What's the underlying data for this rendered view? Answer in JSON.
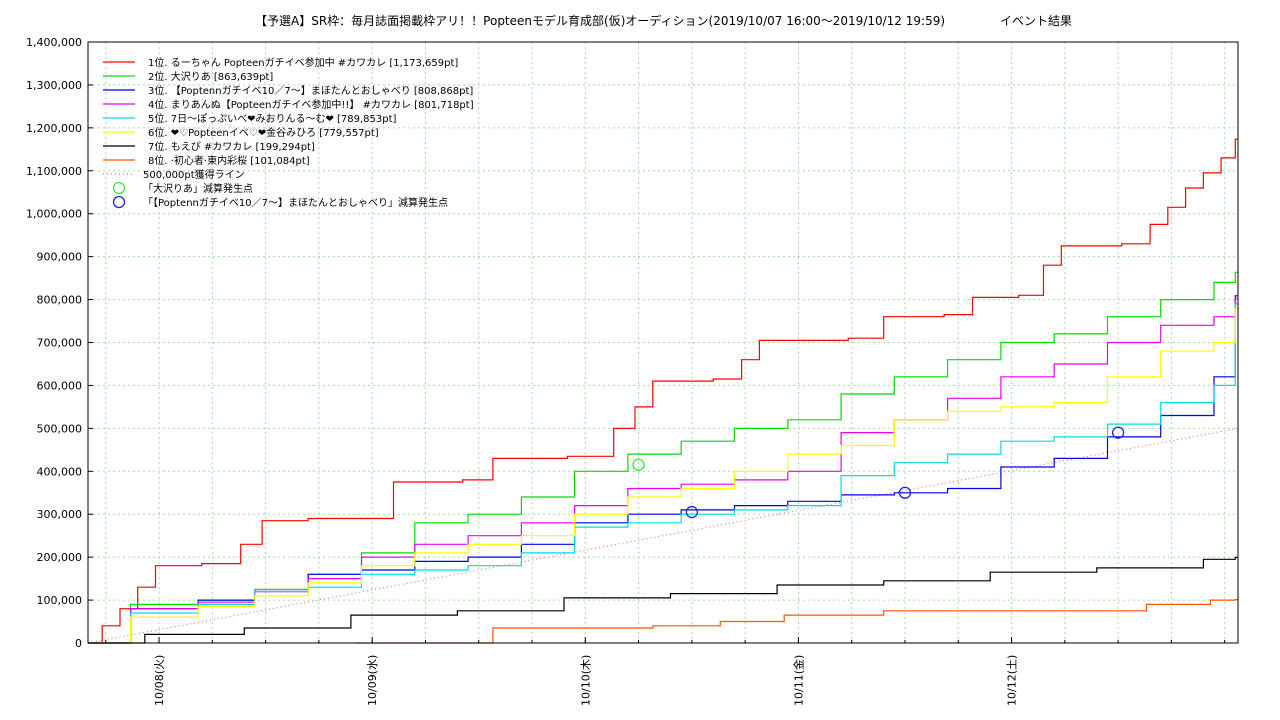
{
  "chart_data": {
    "type": "line",
    "title": "【予選A】SR枠：毎月誌面掲載枠アリ！！Popteenモデル育成部(仮)オーディション(2019/10/07 16:00〜2019/10/12 19:59)",
    "subtitle": "イベント結果",
    "x_range": [
      "2019-10-07 16:00",
      "2019-10-12 19:59"
    ],
    "xtick_labels": [
      "10/08(火)",
      "10/09(水)",
      "10/10(木)",
      "10/11(金)",
      "10/12(土)"
    ],
    "xtick_dates": [
      "2019-10-08",
      "2019-10-09",
      "2019-10-10",
      "2019-10-11",
      "2019-10-12"
    ],
    "ylim": [
      0,
      1400000
    ],
    "yticks": [
      0,
      100000,
      200000,
      300000,
      400000,
      500000,
      600000,
      700000,
      800000,
      900000,
      1000000,
      1100000,
      1200000,
      1300000,
      1400000
    ],
    "ytick_labels": [
      "0",
      "100,000",
      "200,000",
      "300,000",
      "400,000",
      "500,000",
      "600,000",
      "700,000",
      "800,000",
      "900,000",
      "1,000,000",
      "1,100,000",
      "1,200,000",
      "1,300,000",
      "1,400,000"
    ],
    "grid": true,
    "legend_position": "top-left",
    "series": [
      {
        "label": "1位. るーちゃん Popteenガチイベ参加中 #カワカレ [1,173,659pt]",
        "color": "#ff0000",
        "points": [
          [
            "2019-10-07 16:00",
            0
          ],
          [
            "2019-10-07 18:00",
            40000
          ],
          [
            "2019-10-07 20:00",
            80000
          ],
          [
            "2019-10-07 22:00",
            130000
          ],
          [
            "2019-10-08 00:00",
            180000
          ],
          [
            "2019-10-08 06:00",
            185000
          ],
          [
            "2019-10-08 10:00",
            230000
          ],
          [
            "2019-10-08 12:00",
            285000
          ],
          [
            "2019-10-08 18:00",
            290000
          ],
          [
            "2019-10-09 00:00",
            290000
          ],
          [
            "2019-10-09 03:00",
            375000
          ],
          [
            "2019-10-09 12:00",
            380000
          ],
          [
            "2019-10-09 14:00",
            430000
          ],
          [
            "2019-10-10 00:00",
            435000
          ],
          [
            "2019-10-10 04:00",
            500000
          ],
          [
            "2019-10-10 06:00",
            550000
          ],
          [
            "2019-10-10 08:00",
            610000
          ],
          [
            "2019-10-10 16:00",
            615000
          ],
          [
            "2019-10-10 18:00",
            660000
          ],
          [
            "2019-10-10 20:00",
            705000
          ],
          [
            "2019-10-11 08:00",
            710000
          ],
          [
            "2019-10-11 10:00",
            760000
          ],
          [
            "2019-10-11 18:00",
            765000
          ],
          [
            "2019-10-11 20:00",
            805000
          ],
          [
            "2019-10-12 02:00",
            810000
          ],
          [
            "2019-10-12 04:00",
            880000
          ],
          [
            "2019-10-12 06:00",
            925000
          ],
          [
            "2019-10-12 14:00",
            930000
          ],
          [
            "2019-10-12 16:00",
            975000
          ],
          [
            "2019-10-12 18:00",
            1015000
          ],
          [
            "2019-10-12 20:00",
            1060000
          ],
          [
            "2019-10-12 22:00",
            1095000
          ],
          [
            "2019-10-13 00:00",
            1130000
          ],
          [
            "2019-10-13 01:30",
            1173659
          ]
        ]
      },
      {
        "label": "2位. 大沢りあ [863,639pt]",
        "color": "#00dd00",
        "points": [
          [
            "2019-10-07 16:00",
            0
          ],
          [
            "2019-10-07 22:00",
            90000
          ],
          [
            "2019-10-08 06:00",
            100000
          ],
          [
            "2019-10-08 12:00",
            125000
          ],
          [
            "2019-10-08 18:00",
            160000
          ],
          [
            "2019-10-09 00:00",
            210000
          ],
          [
            "2019-10-09 06:00",
            280000
          ],
          [
            "2019-10-09 12:00",
            300000
          ],
          [
            "2019-10-09 18:00",
            340000
          ],
          [
            "2019-10-10 00:00",
            400000
          ],
          [
            "2019-10-10 06:00",
            440000
          ],
          [
            "2019-10-10 12:00",
            470000
          ],
          [
            "2019-10-10 18:00",
            500000
          ],
          [
            "2019-10-11 00:00",
            520000
          ],
          [
            "2019-10-11 06:00",
            580000
          ],
          [
            "2019-10-11 12:00",
            620000
          ],
          [
            "2019-10-11 18:00",
            660000
          ],
          [
            "2019-10-12 00:00",
            700000
          ],
          [
            "2019-10-12 06:00",
            720000
          ],
          [
            "2019-10-12 12:00",
            760000
          ],
          [
            "2019-10-12 18:00",
            800000
          ],
          [
            "2019-10-13 00:00",
            840000
          ],
          [
            "2019-10-13 01:30",
            863639
          ]
        ]
      },
      {
        "label": "3位. 【Poptennガチイベ10／7〜】まほたんとおしゃべり [808,868pt]",
        "color": "#0000ee",
        "points": [
          [
            "2019-10-07 16:00",
            0
          ],
          [
            "2019-10-07 22:00",
            80000
          ],
          [
            "2019-10-08 06:00",
            100000
          ],
          [
            "2019-10-08 12:00",
            120000
          ],
          [
            "2019-10-08 18:00",
            160000
          ],
          [
            "2019-10-09 00:00",
            170000
          ],
          [
            "2019-10-09 06:00",
            190000
          ],
          [
            "2019-10-09 12:00",
            200000
          ],
          [
            "2019-10-09 18:00",
            230000
          ],
          [
            "2019-10-10 00:00",
            280000
          ],
          [
            "2019-10-10 06:00",
            300000
          ],
          [
            "2019-10-10 12:00",
            310000
          ],
          [
            "2019-10-10 18:00",
            320000
          ],
          [
            "2019-10-11 00:00",
            330000
          ],
          [
            "2019-10-11 06:00",
            345000
          ],
          [
            "2019-10-11 12:00",
            350000
          ],
          [
            "2019-10-11 18:00",
            360000
          ],
          [
            "2019-10-12 00:00",
            410000
          ],
          [
            "2019-10-12 06:00",
            430000
          ],
          [
            "2019-10-12 12:00",
            480000
          ],
          [
            "2019-10-12 18:00",
            530000
          ],
          [
            "2019-10-13 00:00",
            620000
          ],
          [
            "2019-10-13 01:30",
            808868
          ]
        ]
      },
      {
        "label": "4位. まりあんぬ【Popteenガチイベ参加中!!】 #カワカレ [801,718pt]",
        "color": "#ee00ee",
        "points": [
          [
            "2019-10-07 16:00",
            0
          ],
          [
            "2019-10-07 22:00",
            80000
          ],
          [
            "2019-10-08 06:00",
            95000
          ],
          [
            "2019-10-08 12:00",
            120000
          ],
          [
            "2019-10-08 18:00",
            150000
          ],
          [
            "2019-10-09 00:00",
            200000
          ],
          [
            "2019-10-09 06:00",
            230000
          ],
          [
            "2019-10-09 12:00",
            250000
          ],
          [
            "2019-10-09 18:00",
            280000
          ],
          [
            "2019-10-10 00:00",
            320000
          ],
          [
            "2019-10-10 06:00",
            360000
          ],
          [
            "2019-10-10 12:00",
            370000
          ],
          [
            "2019-10-10 18:00",
            380000
          ],
          [
            "2019-10-11 00:00",
            400000
          ],
          [
            "2019-10-11 06:00",
            490000
          ],
          [
            "2019-10-11 12:00",
            520000
          ],
          [
            "2019-10-11 18:00",
            570000
          ],
          [
            "2019-10-12 00:00",
            620000
          ],
          [
            "2019-10-12 06:00",
            650000
          ],
          [
            "2019-10-12 12:00",
            700000
          ],
          [
            "2019-10-12 18:00",
            740000
          ],
          [
            "2019-10-13 00:00",
            760000
          ],
          [
            "2019-10-13 01:30",
            801718
          ]
        ]
      },
      {
        "label": "5位. 7日〜ぽっぷいべ❤みおりんる〜む❤ [789,853pt]",
        "color": "#00dddd",
        "points": [
          [
            "2019-10-07 16:00",
            0
          ],
          [
            "2019-10-07 22:00",
            70000
          ],
          [
            "2019-10-08 06:00",
            90000
          ],
          [
            "2019-10-08 12:00",
            120000
          ],
          [
            "2019-10-08 18:00",
            130000
          ],
          [
            "2019-10-09 00:00",
            160000
          ],
          [
            "2019-10-09 06:00",
            170000
          ],
          [
            "2019-10-09 12:00",
            180000
          ],
          [
            "2019-10-09 18:00",
            210000
          ],
          [
            "2019-10-10 00:00",
            270000
          ],
          [
            "2019-10-10 06:00",
            280000
          ],
          [
            "2019-10-10 12:00",
            300000
          ],
          [
            "2019-10-10 18:00",
            310000
          ],
          [
            "2019-10-11 00:00",
            320000
          ],
          [
            "2019-10-11 06:00",
            390000
          ],
          [
            "2019-10-11 12:00",
            420000
          ],
          [
            "2019-10-11 18:00",
            440000
          ],
          [
            "2019-10-12 00:00",
            470000
          ],
          [
            "2019-10-12 06:00",
            480000
          ],
          [
            "2019-10-12 12:00",
            510000
          ],
          [
            "2019-10-12 18:00",
            560000
          ],
          [
            "2019-10-13 00:00",
            600000
          ],
          [
            "2019-10-13 01:30",
            789853
          ]
        ]
      },
      {
        "label": "6位. ❤♡Popteenイベ♡❤金谷みひろ [779,557pt]",
        "color": "#ffff00",
        "points": [
          [
            "2019-10-07 16:00",
            0
          ],
          [
            "2019-10-07 22:00",
            60000
          ],
          [
            "2019-10-08 06:00",
            85000
          ],
          [
            "2019-10-08 12:00",
            110000
          ],
          [
            "2019-10-08 18:00",
            140000
          ],
          [
            "2019-10-09 00:00",
            180000
          ],
          [
            "2019-10-09 06:00",
            210000
          ],
          [
            "2019-10-09 12:00",
            230000
          ],
          [
            "2019-10-09 18:00",
            250000
          ],
          [
            "2019-10-10 00:00",
            300000
          ],
          [
            "2019-10-10 06:00",
            340000
          ],
          [
            "2019-10-10 12:00",
            360000
          ],
          [
            "2019-10-10 18:00",
            400000
          ],
          [
            "2019-10-11 00:00",
            440000
          ],
          [
            "2019-10-11 06:00",
            460000
          ],
          [
            "2019-10-11 12:00",
            520000
          ],
          [
            "2019-10-11 18:00",
            540000
          ],
          [
            "2019-10-12 00:00",
            550000
          ],
          [
            "2019-10-12 06:00",
            560000
          ],
          [
            "2019-10-12 12:00",
            620000
          ],
          [
            "2019-10-12 18:00",
            680000
          ],
          [
            "2019-10-13 00:00",
            700000
          ],
          [
            "2019-10-13 01:30",
            779557
          ]
        ]
      },
      {
        "label": "7位. もえぴ #カワカレ [199,294pt]",
        "color": "#000000",
        "points": [
          [
            "2019-10-07 16:00",
            0
          ],
          [
            "2019-10-08 00:00",
            20000
          ],
          [
            "2019-10-08 12:00",
            35000
          ],
          [
            "2019-10-09 00:00",
            65000
          ],
          [
            "2019-10-09 12:00",
            75000
          ],
          [
            "2019-10-10 00:00",
            105000
          ],
          [
            "2019-10-10 12:00",
            115000
          ],
          [
            "2019-10-11 00:00",
            135000
          ],
          [
            "2019-10-11 12:00",
            145000
          ],
          [
            "2019-10-12 00:00",
            165000
          ],
          [
            "2019-10-12 12:00",
            175000
          ],
          [
            "2019-10-13 00:00",
            195000
          ],
          [
            "2019-10-13 01:30",
            199294
          ]
        ]
      },
      {
        "label": "8位. ·初心者·東内彩桜 [101,084pt]",
        "color": "#ff5500",
        "points": [
          [
            "2019-10-08 22:00",
            0
          ],
          [
            "2019-10-09 12:00",
            0
          ],
          [
            "2019-10-09 14:00",
            35000
          ],
          [
            "2019-10-10 12:00",
            40000
          ],
          [
            "2019-10-10 16:00",
            50000
          ],
          [
            "2019-10-11 00:00",
            65000
          ],
          [
            "2019-10-11 12:00",
            75000
          ],
          [
            "2019-10-12 12:00",
            75000
          ],
          [
            "2019-10-12 16:00",
            90000
          ],
          [
            "2019-10-13 00:00",
            100000
          ],
          [
            "2019-10-13 01:30",
            101084
          ]
        ]
      }
    ],
    "threshold": {
      "label": "500,000pt獲得ライン",
      "color": "#dd6666",
      "points": [
        [
          "2019-10-07 16:00",
          0
        ],
        [
          "2019-10-13 01:30",
          500000
        ]
      ]
    },
    "deduction_markers": [
      {
        "label": "「大沢りあ」減算発生点",
        "color": "#33ee33",
        "points": [
          [
            "2019-10-10 06:00",
            415000
          ]
        ]
      },
      {
        "label": "「【Poptennガチイベ10／7〜】まほたんとおしゃべり」減算発生点",
        "color": "#2222ee",
        "points": [
          [
            "2019-10-10 12:00",
            305000
          ],
          [
            "2019-10-11 12:00",
            350000
          ],
          [
            "2019-10-12 12:00",
            490000
          ]
        ]
      }
    ]
  }
}
